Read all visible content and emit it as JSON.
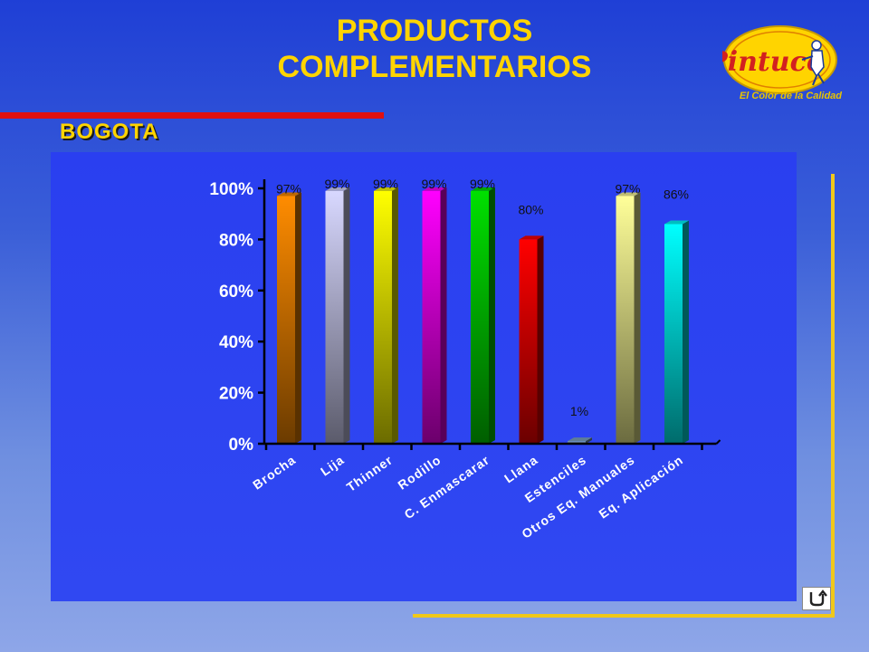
{
  "header": {
    "title_line1": "PRODUCTOS",
    "title_line2": "COMPLEMENTARIOS",
    "region": "BOGOTA"
  },
  "logo": {
    "brand": "Pintuco",
    "tagline": "El Color de la Calidad"
  },
  "nav": {
    "back_icon": "return-arrow-icon"
  },
  "colors": {
    "title": "#ffd400",
    "accent_red": "#e01010",
    "frame_yellow": "#f0c81a"
  },
  "chart_data": {
    "type": "bar",
    "title": "",
    "xlabel": "",
    "ylabel": "",
    "ylim": [
      0,
      100
    ],
    "yticks": [
      "0%",
      "20%",
      "40%",
      "60%",
      "80%",
      "100%"
    ],
    "grid": false,
    "categories": [
      "Brocha",
      "Lija",
      "Thinner",
      "Rodillo",
      "C. Enmascarar",
      "Llana",
      "Estenciles",
      "Otros Eq. Manuales",
      "Eq. Aplicación"
    ],
    "values": [
      97,
      99,
      99,
      99,
      99,
      80,
      1,
      97,
      86
    ],
    "data_labels": [
      "97%",
      "99%",
      "99%",
      "99%",
      "99%",
      "80%",
      "1%",
      "97%",
      "86%"
    ],
    "bar_colors": [
      "#ff8c00",
      "#d8d8ff",
      "#ffff00",
      "#ff00ff",
      "#00e000",
      "#ff0000",
      "#7fa6c8",
      "#ffff99",
      "#00ffff"
    ]
  }
}
